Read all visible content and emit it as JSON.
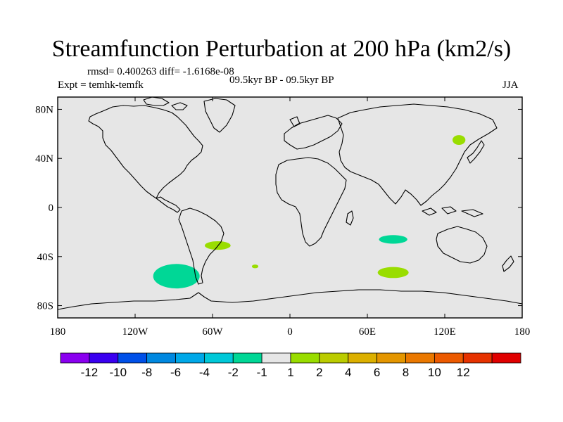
{
  "chart_data": {
    "type": "map",
    "title": "Streamfunction Perturbation at 200 hPa (km2/s)",
    "stats_line": "rmsd= 0.400263 diff= -1.6168e-08",
    "period_label": "09.5kyr BP - 09.5kyr BP",
    "expt_label": "Expt = temhk-temfk",
    "season_label": "JJA",
    "xlim": [
      -180,
      180
    ],
    "ylim": [
      -90,
      90
    ],
    "x_ticks": [
      {
        "value": -180,
        "label": "180"
      },
      {
        "value": -120,
        "label": "120W"
      },
      {
        "value": -60,
        "label": "60W"
      },
      {
        "value": 0,
        "label": "0"
      },
      {
        "value": 60,
        "label": "60E"
      },
      {
        "value": 120,
        "label": "120E"
      },
      {
        "value": 180,
        "label": "180"
      }
    ],
    "y_ticks": [
      {
        "value": 80,
        "label": "80N"
      },
      {
        "value": 40,
        "label": "40N"
      },
      {
        "value": 0,
        "label": "0"
      },
      {
        "value": -40,
        "label": "40S"
      },
      {
        "value": -80,
        "label": "80S"
      }
    ],
    "background_color": "#e6e6e6",
    "anomalies": [
      {
        "name": "south-pacific-negative",
        "lon": -88,
        "lat": -56,
        "rlon": 18,
        "rlat": 10,
        "color": "#00d796",
        "level": "-2 to -1"
      },
      {
        "name": "south-america-positive",
        "lon": -56,
        "lat": -31,
        "rlon": 10,
        "rlat": 3.5,
        "color": "#99dd00",
        "level": "1 to 2"
      },
      {
        "name": "south-atlantic-positive",
        "lon": -27,
        "lat": -48,
        "rlon": 2.5,
        "rlat": 1.5,
        "color": "#99dd00",
        "level": "1 to 2"
      },
      {
        "name": "indian-ocean-negative",
        "lon": 80,
        "lat": -26,
        "rlon": 11,
        "rlat": 3.5,
        "color": "#00d796",
        "level": "-2 to -1"
      },
      {
        "name": "southern-indian-positive",
        "lon": 80,
        "lat": -53,
        "rlon": 12,
        "rlat": 4.5,
        "color": "#99dd00",
        "level": "1 to 2"
      },
      {
        "name": "okhotsk-positive",
        "lon": 131,
        "lat": 55,
        "rlon": 5,
        "rlat": 4,
        "color": "#99dd00",
        "level": "1 to 2"
      }
    ],
    "colorbar": {
      "colors": [
        "#8a00f0",
        "#3a00f0",
        "#0050e8",
        "#0088e0",
        "#00a8e8",
        "#00c8d8",
        "#00d796",
        "#e6e6e6",
        "#99dd00",
        "#bbcc00",
        "#dcb000",
        "#e49600",
        "#ea7800",
        "#ec5a00",
        "#e63200",
        "#e00000"
      ],
      "labels": [
        "-12",
        "-10",
        "-8",
        "-6",
        "-4",
        "-2",
        "-1",
        "1",
        "2",
        "4",
        "6",
        "8",
        "10",
        "12"
      ]
    }
  }
}
